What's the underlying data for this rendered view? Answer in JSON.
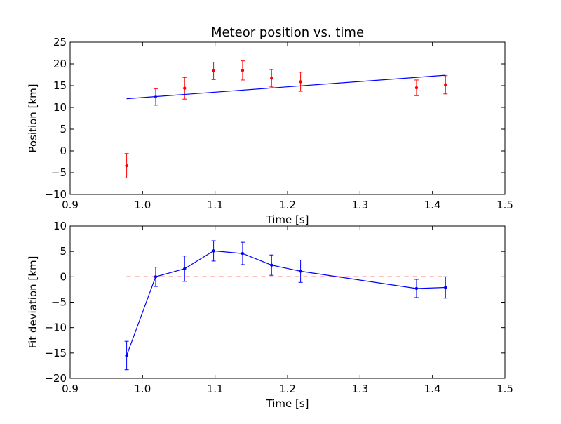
{
  "chart_data": [
    {
      "type": "scatter",
      "title": "Meteor position vs. time",
      "xlabel": "Time [s]",
      "ylabel": "Position [km]",
      "xlim": [
        0.9,
        1.5
      ],
      "ylim": [
        -10,
        25
      ],
      "xticks": [
        "0.9",
        "1.0",
        "1.1",
        "1.2",
        "1.3",
        "1.4",
        "1.5"
      ],
      "yticks": [
        "−10",
        "−5",
        "0",
        "5",
        "10",
        "15",
        "20",
        "25"
      ],
      "grid": false,
      "series": [
        {
          "style": "points-with-errorbars",
          "color": "#ff0000",
          "x": [
            0.978,
            1.018,
            1.058,
            1.098,
            1.138,
            1.178,
            1.218,
            1.378,
            1.418
          ],
          "y": [
            -3.4,
            12.4,
            14.4,
            18.4,
            18.5,
            16.7,
            15.9,
            14.5,
            15.2
          ],
          "yerr": [
            2.8,
            1.9,
            2.5,
            2.0,
            2.2,
            2.0,
            2.2,
            1.8,
            2.1
          ]
        },
        {
          "style": "line",
          "color": "#0000ff",
          "x": [
            0.978,
            1.418
          ],
          "y": [
            12.0,
            17.4
          ]
        }
      ]
    },
    {
      "type": "line",
      "title": "",
      "xlabel": "Time [s]",
      "ylabel": "Fit deviation [km]",
      "xlim": [
        0.9,
        1.5
      ],
      "ylim": [
        -20,
        10
      ],
      "xticks": [
        "0.9",
        "1.0",
        "1.1",
        "1.2",
        "1.3",
        "1.4",
        "1.5"
      ],
      "yticks": [
        "−20",
        "−15",
        "−10",
        "−5",
        "0",
        "5",
        "10"
      ],
      "grid": false,
      "series": [
        {
          "style": "line-points-errorbars",
          "color": "#0000ff",
          "x": [
            0.978,
            1.018,
            1.058,
            1.098,
            1.138,
            1.178,
            1.218,
            1.378,
            1.418
          ],
          "y": [
            -15.5,
            0.0,
            1.6,
            5.1,
            4.6,
            2.3,
            1.1,
            -2.3,
            -2.1
          ],
          "yerr": [
            2.8,
            1.9,
            2.5,
            2.0,
            2.2,
            2.0,
            2.2,
            1.8,
            2.1
          ]
        },
        {
          "style": "dashed-line",
          "color": "#ff0000",
          "x": [
            0.978,
            1.418
          ],
          "y": [
            0,
            0
          ]
        }
      ]
    }
  ]
}
